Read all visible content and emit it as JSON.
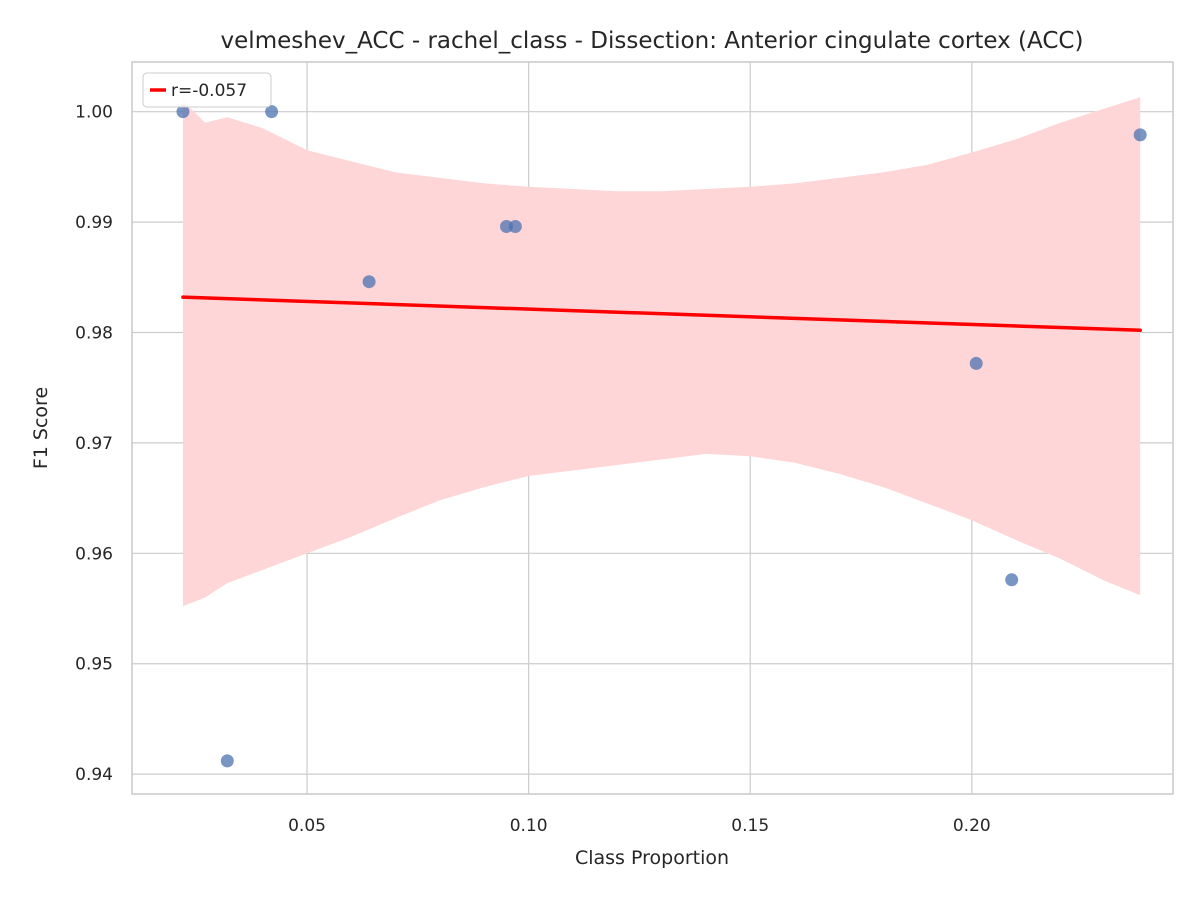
{
  "chart_data": {
    "type": "scatter",
    "title": "velmeshev_ACC - rachel_class - Dissection: Anterior cingulate cortex (ACC)",
    "xlabel": "Class Proportion",
    "ylabel": "F1 Score",
    "xlim": [
      0.0105,
      0.2454
    ],
    "ylim": [
      0.9382,
      1.0045
    ],
    "xticks": [
      0.05,
      0.1,
      0.15,
      0.2
    ],
    "xtick_labels": [
      "0.05",
      "0.10",
      "0.15",
      "0.20"
    ],
    "yticks": [
      0.94,
      0.95,
      0.96,
      0.97,
      0.98,
      0.99,
      1.0
    ],
    "ytick_labels": [
      "0.94",
      "0.95",
      "0.96",
      "0.97",
      "0.98",
      "0.99",
      "1.00"
    ],
    "grid": true,
    "legend": {
      "placement": "top-left",
      "label": "r=-0.057"
    },
    "points": [
      {
        "x": 0.022,
        "y": 1.0
      },
      {
        "x": 0.042,
        "y": 1.0
      },
      {
        "x": 0.032,
        "y": 0.9412
      },
      {
        "x": 0.064,
        "y": 0.9846
      },
      {
        "x": 0.095,
        "y": 0.9896
      },
      {
        "x": 0.097,
        "y": 0.9896
      },
      {
        "x": 0.201,
        "y": 0.9772
      },
      {
        "x": 0.209,
        "y": 0.9576
      },
      {
        "x": 0.238,
        "y": 0.9979
      }
    ],
    "regression": {
      "x": [
        0.022,
        0.238
      ],
      "y": [
        0.9832,
        0.9802
      ]
    },
    "confidence_band": {
      "x": [
        0.022,
        0.027,
        0.032,
        0.04,
        0.05,
        0.06,
        0.07,
        0.08,
        0.09,
        0.1,
        0.11,
        0.12,
        0.13,
        0.14,
        0.15,
        0.16,
        0.17,
        0.18,
        0.19,
        0.2,
        0.21,
        0.22,
        0.23,
        0.238
      ],
      "upper": [
        1.001,
        0.999,
        0.9995,
        0.9985,
        0.9965,
        0.9955,
        0.9945,
        0.994,
        0.9935,
        0.9932,
        0.993,
        0.9928,
        0.9928,
        0.993,
        0.9932,
        0.9935,
        0.994,
        0.9945,
        0.9952,
        0.9963,
        0.9975,
        0.999,
        1.0003,
        1.0013
      ],
      "lower": [
        0.9552,
        0.956,
        0.9573,
        0.9585,
        0.96,
        0.9615,
        0.9632,
        0.9648,
        0.966,
        0.967,
        0.9675,
        0.968,
        0.9685,
        0.969,
        0.9688,
        0.9682,
        0.9672,
        0.966,
        0.9645,
        0.963,
        0.9612,
        0.9595,
        0.9575,
        0.9562
      ]
    },
    "colors": {
      "points": "#4c72b0",
      "regression": "#ff0000",
      "band": "#ffd6d7",
      "grid": "#cccccc",
      "spine": "#cccccc"
    }
  }
}
